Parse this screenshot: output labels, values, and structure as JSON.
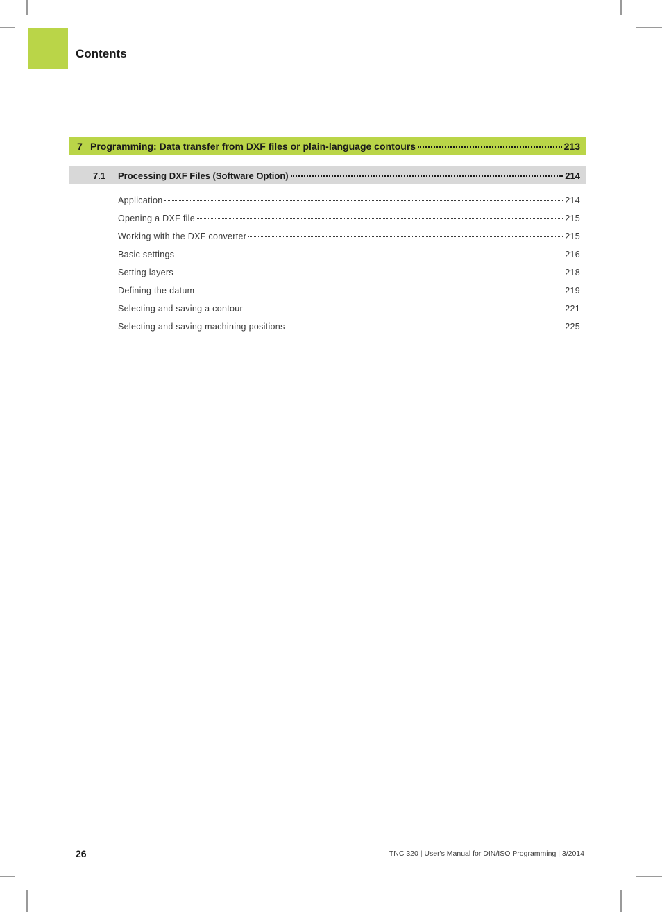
{
  "colors": {
    "accent": "#bad548",
    "section_bg": "#d8d8d8",
    "text_primary": "#1a1a1a",
    "text_body": "#3a3a3a",
    "background": "#ffffff",
    "crop_mark": "#9a9a9a"
  },
  "header": {
    "title": "Contents"
  },
  "chapter": {
    "number": "7",
    "title": "Programming: Data transfer from DXF files or plain-language contours",
    "page": "213"
  },
  "section": {
    "number": "7.1",
    "title": "Processing DXF Files (Software Option)",
    "page": "214"
  },
  "entries": [
    {
      "label": "Application",
      "page": "214"
    },
    {
      "label": "Opening a DXF file",
      "page": "215"
    },
    {
      "label": "Working with the DXF converter",
      "page": "215"
    },
    {
      "label": "Basic settings",
      "page": "216"
    },
    {
      "label": "Setting layers",
      "page": "218"
    },
    {
      "label": "Defining the datum",
      "page": "219"
    },
    {
      "label": "Selecting and saving a contour",
      "page": "221"
    },
    {
      "label": "Selecting and saving machining positions",
      "page": "225"
    }
  ],
  "footer": {
    "page_number": "26",
    "text": "TNC 320 | User's Manual for DIN/ISO Programming | 3/2014"
  }
}
